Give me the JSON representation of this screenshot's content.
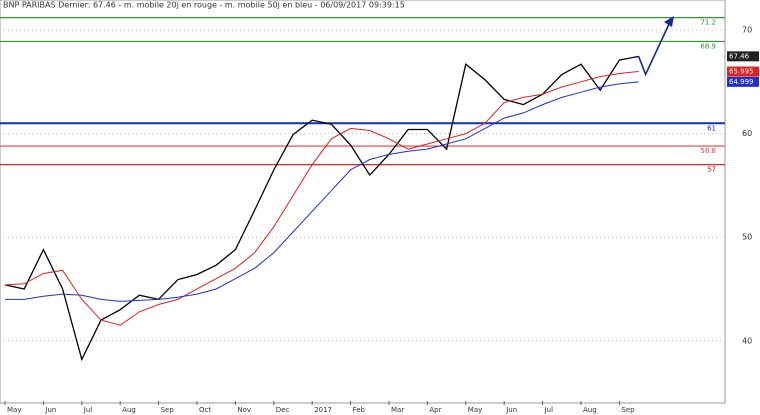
{
  "chart_data": {
    "type": "line",
    "title": "BNP PARIBAS Dernier: 67.46 - m. mobile 20j en rouge - m. mobile 50j en bleu - 06/09/2017 09:39:15",
    "categories": [
      "May",
      null,
      "Jun",
      null,
      "Jul",
      null,
      "Aug",
      null,
      "Sep",
      null,
      "Oct",
      null,
      "Nov",
      null,
      "Dec",
      null,
      "2017",
      null,
      "Feb",
      null,
      "Mar",
      null,
      "Apr",
      null,
      "May",
      null,
      "Jun",
      null,
      "Jul",
      null,
      "Aug",
      null,
      "Sep",
      null
    ],
    "series": [
      {
        "name": "Dernier",
        "color": "#000000",
        "values": [
          45.4,
          45,
          48.8,
          45,
          38.2,
          42,
          43,
          44.4,
          44,
          45.9,
          46.4,
          47.3,
          48.8,
          52.6,
          56.5,
          59.9,
          61.3,
          60.9,
          58.9,
          56,
          58,
          60.4,
          60.4,
          58.5,
          66.7,
          65.2,
          63.3,
          62.8,
          63.8,
          65.7,
          66.7,
          64.2,
          67.1,
          67.46
        ]
      },
      {
        "name": "m. mobile 20j",
        "color": "#e02020",
        "values": [
          45.4,
          45.5,
          46.5,
          46.8,
          44,
          42,
          41.5,
          42.8,
          43.5,
          44,
          45,
          46,
          47,
          48.5,
          51,
          54,
          57,
          59.5,
          60.5,
          60.3,
          59.5,
          58.5,
          59,
          59.5,
          60,
          61,
          63,
          63.5,
          63.8,
          64.5,
          65,
          65.5,
          65.8,
          65.995
        ]
      },
      {
        "name": "m. mobile 50j",
        "color": "#2030d0",
        "values": [
          44,
          44,
          44.3,
          44.5,
          44.4,
          44,
          43.8,
          43.9,
          44,
          44.2,
          44.5,
          45,
          46,
          47,
          48.5,
          50.5,
          52.5,
          54.5,
          56.5,
          57.5,
          58,
          58.3,
          58.5,
          59,
          59.5,
          60.5,
          61.5,
          62,
          62.8,
          63.5,
          64,
          64.5,
          64.8,
          64.999
        ]
      }
    ],
    "levels": [
      {
        "value": 71.2,
        "color": "#2a9a2a"
      },
      {
        "value": 68.9,
        "color": "#2a9a2a"
      },
      {
        "value": 61,
        "color": "#1030c0"
      },
      {
        "value": 58.8,
        "color": "#e04040"
      },
      {
        "value": 57,
        "color": "#d01010"
      }
    ],
    "ylim": [
      33.8,
      72.9
    ],
    "yticks": [
      70,
      60,
      50,
      40
    ],
    "grid": true
  }
}
